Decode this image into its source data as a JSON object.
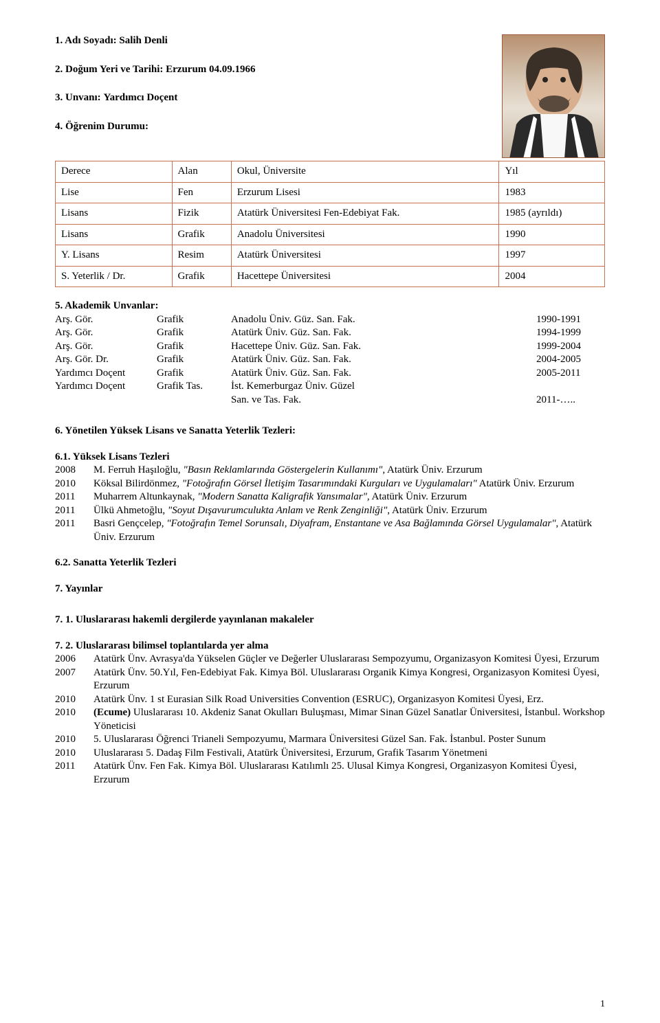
{
  "header": {
    "name_label": "1. Adı Soyadı:",
    "name_value": "Salih Denli",
    "birth_label": "2. Doğum Yeri ve Tarihi:",
    "birth_value": "Erzurum 04.09.1966",
    "title_label": "3. Unvanı:",
    "title_value": "Yardımcı Doçent",
    "education_label": "4. Öğrenim Durumu:"
  },
  "education": {
    "columns": [
      "Derece",
      "Alan",
      "Okul, Üniversite",
      "Yıl"
    ],
    "rows": [
      [
        "Lise",
        "Fen",
        "Erzurum Lisesi",
        "1983"
      ],
      [
        "Lisans",
        "Fizik",
        "Atatürk Üniversitesi Fen-Edebiyat Fak.",
        "1985 (ayrıldı)"
      ],
      [
        "Lisans",
        "Grafik",
        "Anadolu Üniversitesi",
        "1990"
      ],
      [
        "Y. Lisans",
        "Resim",
        "Atatürk Üniversitesi",
        "1997"
      ],
      [
        "S. Yeterlik / Dr.",
        "Grafik",
        "Hacettepe Üniversitesi",
        "2004"
      ]
    ]
  },
  "positions": {
    "title": "5. Akademik Unvanlar:",
    "rows": [
      {
        "role": "Arş. Gör.",
        "field": "Grafik",
        "inst": "Anadolu Üniv. Güz. San. Fak.",
        "yr": "1990-1991"
      },
      {
        "role": "Arş. Gör.",
        "field": "Grafik",
        "inst": "Atatürk Üniv. Güz. San. Fak.",
        "yr": "1994-1999"
      },
      {
        "role": "Arş. Gör.",
        "field": "Grafik",
        "inst": "Hacettepe Üniv. Güz. San. Fak.",
        "yr": "1999-2004"
      },
      {
        "role": "Arş. Gör. Dr.",
        "field": "Grafik",
        "inst": "Atatürk Üniv. Güz. San. Fak.",
        "yr": "2004-2005"
      },
      {
        "role": "Yardımcı Doçent",
        "field": "Grafik",
        "inst": "Atatürk Üniv. Güz. San. Fak.",
        "yr": "2005-2011"
      },
      {
        "role": "Yardımcı Doçent",
        "field": "Grafik Tas.",
        "inst": "İst. Kemerburgaz Üniv. Güzel",
        "yr": ""
      },
      {
        "role": "",
        "field": "",
        "inst": "San. ve Tas. Fak.",
        "yr": "2011-….."
      }
    ]
  },
  "sec6": {
    "title": "6. Yönetilen Yüksek Lisans ve Sanatta Yeterlik Tezleri:",
    "sub61": "6.1. Yüksek Lisans Tezleri",
    "theses": [
      {
        "yr": "2008",
        "author": "M. Ferruh Haşıloğlu, ",
        "title": "\"Basın Reklamlarında Göstergelerin Kullanımı\"",
        "rest": ", Atatürk Üniv. Erzurum"
      },
      {
        "yr": "2010",
        "author": "Köksal Bilirdönmez, ",
        "title": "\"Fotoğrafın Görsel İletişim Tasarımındaki Kurguları ve Uygulamaları\"",
        "rest": " Atatürk Üniv. Erzurum"
      },
      {
        "yr": "2011",
        "author": "Muharrem Altunkaynak, ",
        "title": "\"Modern Sanatta Kaligrafik Yansımalar\"",
        "rest": ", Atatürk Üniv. Erzurum"
      },
      {
        "yr": "2011",
        "author": "Ülkü Ahmetoğlu, ",
        "title": "\"Soyut Dışavurumculukta Anlam ve Renk Zenginliği\"",
        "rest": ", Atatürk Üniv. Erzurum"
      },
      {
        "yr": "2011",
        "author": "Basri Gençcelep, ",
        "title": "\"Fotoğrafın Temel Sorunsalı, Diyafram, Enstantane ve Asa Bağlamında Görsel Uygulamalar\"",
        "rest": ", Atatürk Üniv. Erzurum"
      }
    ],
    "sub62": "6.2. Sanatta Yeterlik Tezleri"
  },
  "sec7": {
    "title": "7. Yayınlar",
    "sub71": "7. 1. Uluslararası hakemli dergilerde yayınlanan makaleler",
    "sub72": "7. 2. Uluslararası bilimsel toplantılarda yer alma",
    "items": [
      {
        "yr": "2006",
        "text": "Atatürk Ünv. Avrasya'da Yükselen Güçler ve Değerler  Uluslararası Sempozyumu, Organizasyon Komitesi Üyesi, Erzurum"
      },
      {
        "yr": "2007",
        "text": "Atatürk Ünv. 50.Yıl, Fen-Edebiyat Fak. Kimya Böl. Uluslararası Organik Kimya Kongresi, Organizasyon Komitesi Üyesi, Erzurum"
      },
      {
        "yr": "2010",
        "text": "Atatürk Ünv. 1 st Eurasian Silk Road Universities Convention (ESRUC), Organizasyon Komitesi Üyesi, Erz."
      },
      {
        "yr": "2010",
        "bold_lead": "(Ecume)",
        "text": " Uluslararası 10. Akdeniz Sanat Okulları Buluşması, Mimar Sinan Güzel Sanatlar Üniversitesi, İstanbul. Workshop Yöneticisi"
      },
      {
        "yr": "2010",
        "text": "5. Uluslararası Öğrenci Trianeli Sempozyumu, Marmara Üniversitesi Güzel San. Fak. İstanbul. Poster Sunum"
      },
      {
        "yr": "2010",
        "text": "Uluslararası 5. Dadaş Film Festivali, Atatürk Üniversitesi, Erzurum, Grafik Tasarım Yönetmeni"
      },
      {
        "yr": "2011",
        "text": "Atatürk Ünv. Fen Fak. Kimya Böl. Uluslararası Katılımlı 25. Ulusal Kimya Kongresi, Organizasyon Komitesi Üyesi, Erzurum"
      }
    ]
  },
  "page_number": "1",
  "colors": {
    "text": "#000000",
    "background": "#ffffff",
    "table_border": "#c87050",
    "photo_border": "#9e5a3a"
  }
}
